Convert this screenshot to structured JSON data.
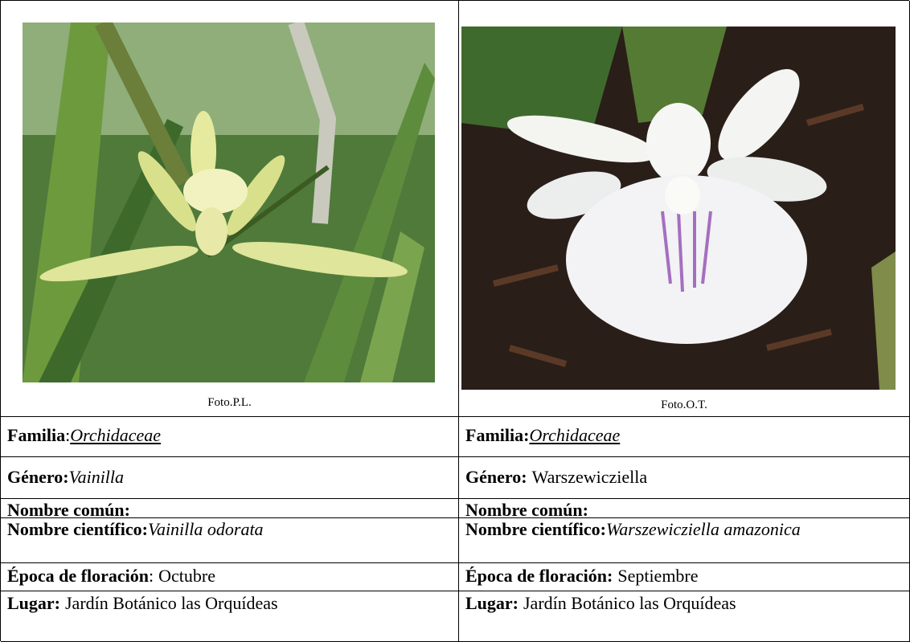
{
  "columns": [
    {
      "photo": {
        "caption": "Foto.P.L."
      },
      "rows": [
        {
          "label": "Familia",
          "sep": ":",
          "value": "Orchidaceae",
          "style": "italic-underline"
        },
        {
          "label": "Género:",
          "value": "Vainilla",
          "style": "italic"
        },
        {
          "label": "Nombre común:"
        },
        {
          "label": "Nombre científico:",
          "value": "Vainilla odorata",
          "style": "italic"
        },
        {
          "label": "Época de floración",
          "sep": ":",
          "value": "Octubre"
        },
        {
          "label": "Lugar:",
          "value": "Jardín Botánico las Orquídeas"
        }
      ]
    },
    {
      "photo": {
        "caption": "Foto.O.T."
      },
      "rows": [
        {
          "label": "Familia:",
          "value": "Orchidaceae",
          "style": "italic-underline"
        },
        {
          "label": "Género:",
          "value": "Warszewicziella"
        },
        {
          "label": "Nombre común:"
        },
        {
          "label": "Nombre científico:",
          "value": "Warszewicziella amazonica",
          "style": "italic"
        },
        {
          "label": "Época de floración:",
          "value": "Septiembre"
        },
        {
          "label": "Lugar:",
          "value": "Jardín Botánico las Orquídeas"
        }
      ]
    }
  ]
}
